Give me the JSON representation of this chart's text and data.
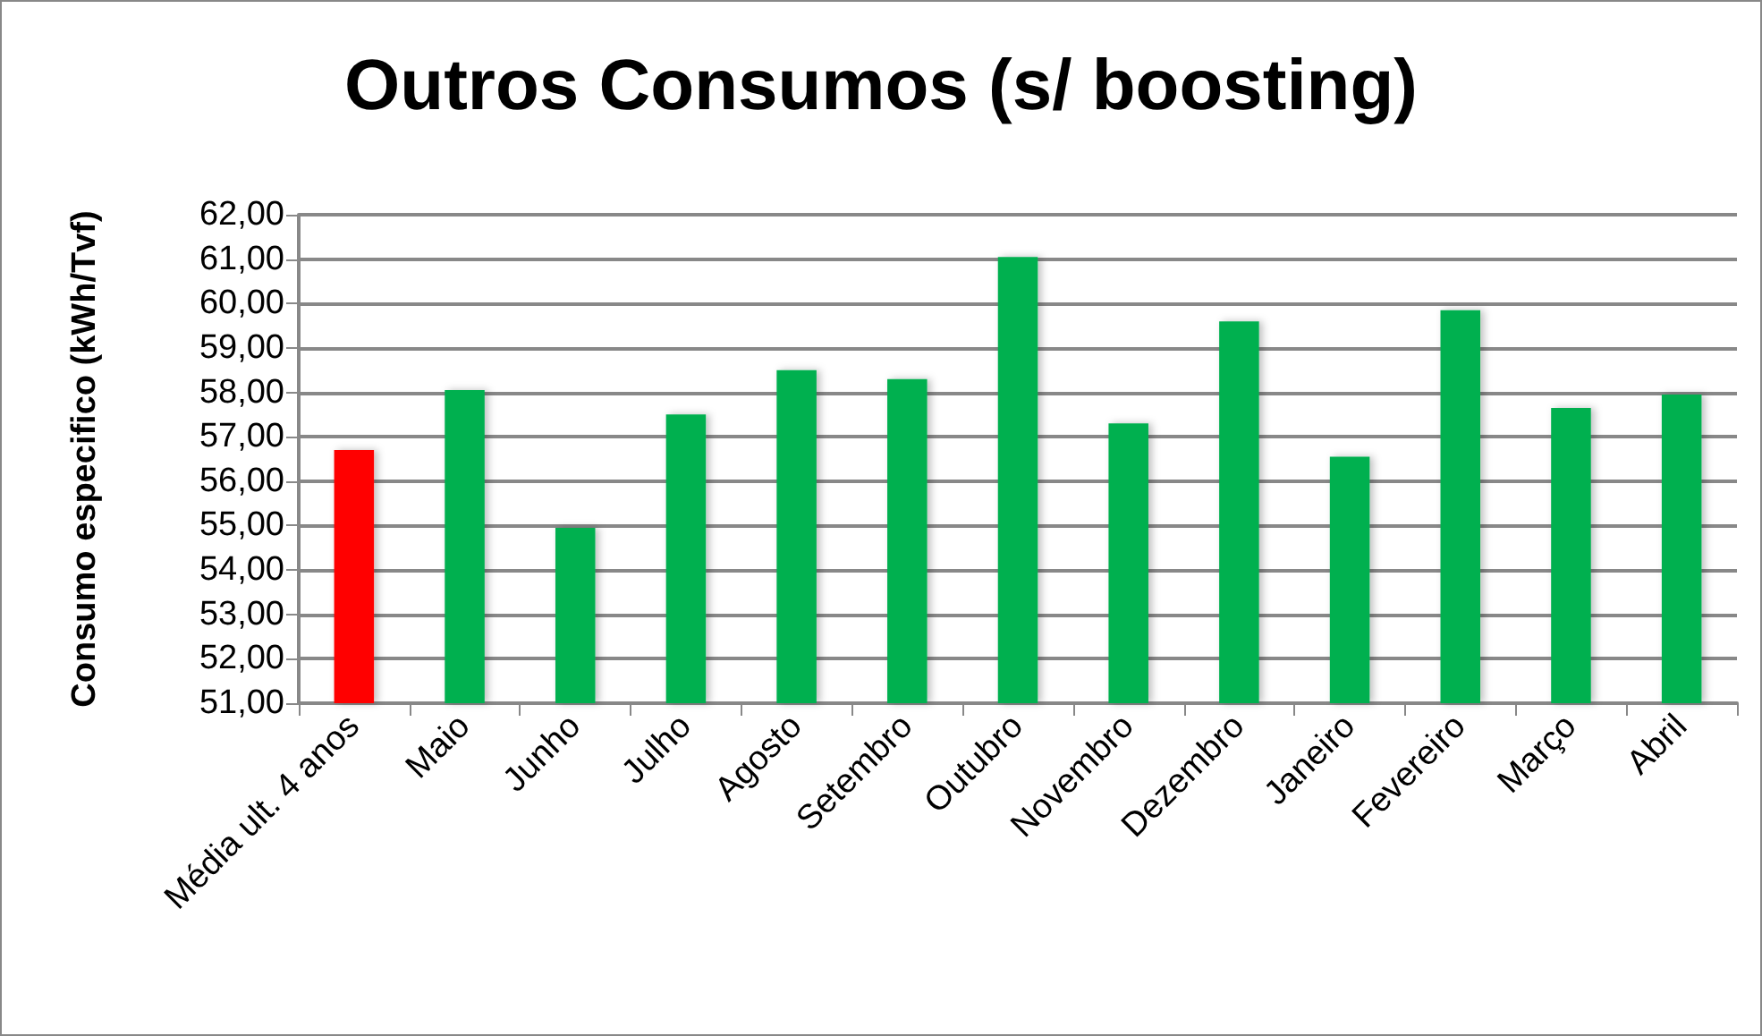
{
  "chart_data": {
    "type": "bar",
    "title": "Outros Consumos (s/ boosting)",
    "ylabel": "Consumo especifico (kWh/Tvf)",
    "categories": [
      "Média ult. 4 anos",
      "Maio",
      "Junho",
      "Julho",
      "Agosto",
      "Setembro",
      "Outubro",
      "Novembro",
      "Dezembro",
      "Janeiro",
      "Fevereiro",
      "Março",
      "Abril"
    ],
    "values": [
      56.7,
      58.05,
      54.95,
      57.5,
      58.5,
      58.3,
      61.05,
      57.3,
      59.6,
      56.55,
      59.85,
      57.65,
      57.95
    ],
    "colors": [
      "#ff0000",
      "#00b050",
      "#00b050",
      "#00b050",
      "#00b050",
      "#00b050",
      "#00b050",
      "#00b050",
      "#00b050",
      "#00b050",
      "#00b050",
      "#00b050",
      "#00b050"
    ],
    "ylim": [
      51,
      62
    ],
    "yticks": [
      {
        "value": 51,
        "label": "51,00"
      },
      {
        "value": 52,
        "label": "52,00"
      },
      {
        "value": 53,
        "label": "53,00"
      },
      {
        "value": 54,
        "label": "54,00"
      },
      {
        "value": 55,
        "label": "55,00"
      },
      {
        "value": 56,
        "label": "56,00"
      },
      {
        "value": 57,
        "label": "57,00"
      },
      {
        "value": 58,
        "label": "58,00"
      },
      {
        "value": 59,
        "label": "59,00"
      },
      {
        "value": 60,
        "label": "60,00"
      },
      {
        "value": 61,
        "label": "61,00"
      },
      {
        "value": 62,
        "label": "62,00"
      }
    ],
    "grid": "y"
  }
}
